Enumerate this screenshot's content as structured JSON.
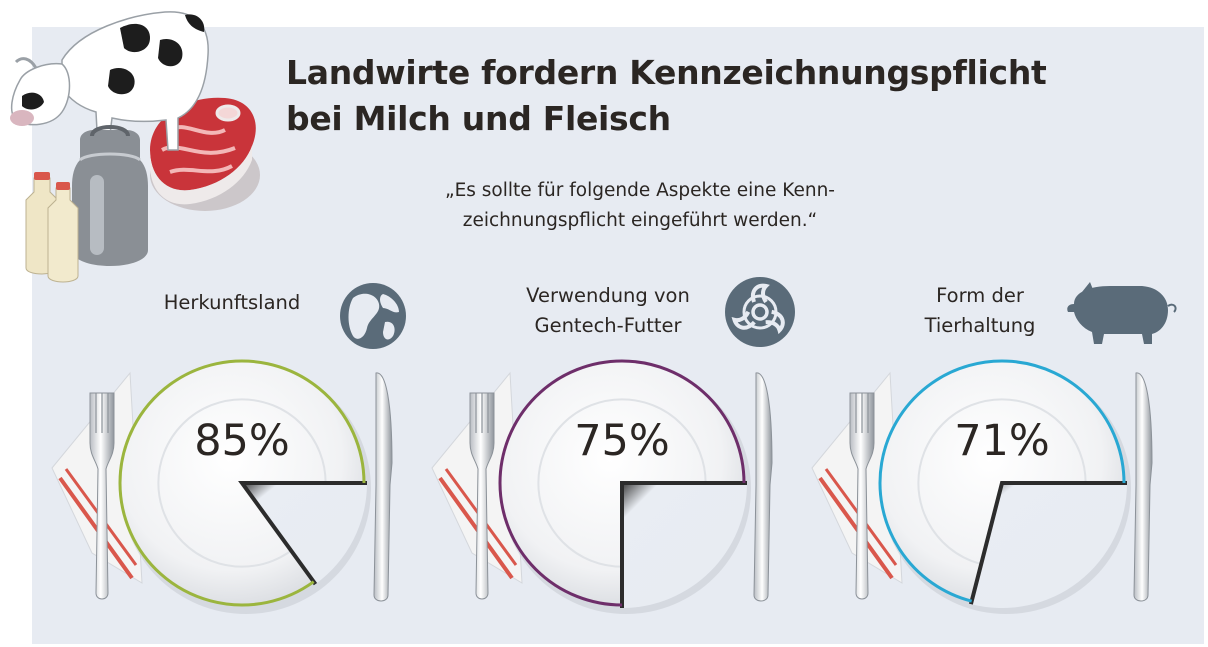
{
  "title": {
    "line1": "Landwirte fordern Kennzeichnungspflicht",
    "line2": "bei Milch und Fleisch"
  },
  "subtitle": {
    "line1": "„Es sollte für folgende Aspekte eine Kenn-",
    "line2": "zeichnungspflicht eingeführt werden.“"
  },
  "icons": [
    "cow-icon",
    "milk-bottle-icon",
    "milk-can-icon",
    "steak-icon",
    "globe-icon",
    "biohazard-icon",
    "pig-icon",
    "fork-icon",
    "knife-icon",
    "napkin-icon",
    "plate-icon"
  ],
  "colors": {
    "background": "#e7ebf2",
    "icon_fill": "#5a6b79",
    "napkin_stripe": "#d9574c"
  },
  "chart_data": {
    "type": "pie",
    "unit": "%",
    "categories": [
      {
        "lines": [
          "Herkunftsland"
        ],
        "value": 85,
        "label": "85%",
        "color": "#9bb53e",
        "icon": "globe-icon"
      },
      {
        "lines": [
          "Verwendung von",
          "Gentech-Futter"
        ],
        "value": 75,
        "label": "75%",
        "color": "#6e2e6a",
        "icon": "biohazard-icon"
      },
      {
        "lines": [
          "Form der",
          "Tierhaltung"
        ],
        "value": 71,
        "label": "71%",
        "color": "#29a8d3",
        "icon": "pig-icon"
      }
    ]
  }
}
